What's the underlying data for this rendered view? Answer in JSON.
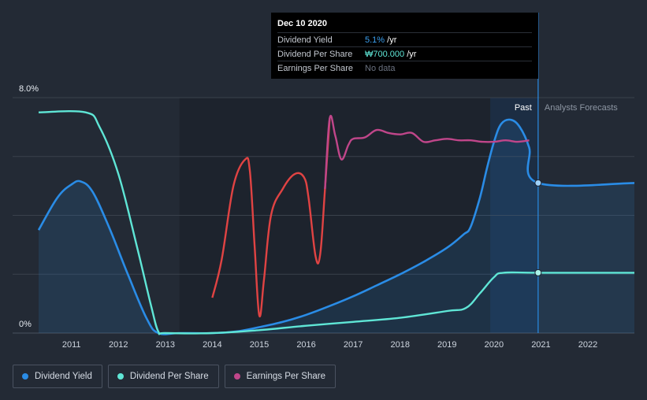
{
  "tooltip": {
    "date": "Dec 10 2020",
    "rows": [
      {
        "label": "Dividend Yield",
        "value": "5.1%",
        "suffix": " /yr"
      },
      {
        "label": "Dividend Per Share",
        "value": "₩700.000",
        "suffix": " /yr"
      },
      {
        "label": "Earnings Per Share",
        "value": "No data",
        "suffix": ""
      }
    ]
  },
  "regions": {
    "past_label": "Past",
    "forecast_label": "Analysts Forecasts"
  },
  "legend": [
    {
      "label": "Dividend Yield",
      "color": "#2a8ce6"
    },
    {
      "label": "Dividend Per Share",
      "color": "#5fe6d6"
    },
    {
      "label": "Earnings Per Share",
      "color": "#c0468a"
    }
  ],
  "colors": {
    "background": "#232a35",
    "dividend_yield": "#2a8ce6",
    "dividend_per_share": "#5fe6d6",
    "eps_positive": "#c0468a",
    "eps_negative": "#e04343",
    "past_region": "#1c3656"
  },
  "chart_data": {
    "type": "line",
    "x_ticks": [
      "2011",
      "2012",
      "2013",
      "2014",
      "2015",
      "2016",
      "2017",
      "2018",
      "2019",
      "2020",
      "2021",
      "2022"
    ],
    "y_ticks": [
      "8.0%",
      "0%"
    ],
    "ylim": [
      0,
      8
    ],
    "xlim": [
      2010.25,
      2022.99
    ],
    "past_region_start": 2019.92,
    "now_marker": 2020.94,
    "grid": true,
    "series": [
      {
        "name": "Dividend Yield",
        "unit": "%",
        "points": [
          [
            2010.3,
            3.5
          ],
          [
            2010.7,
            4.6
          ],
          [
            2011.0,
            5.05
          ],
          [
            2011.2,
            5.15
          ],
          [
            2011.45,
            4.8
          ],
          [
            2011.8,
            3.6
          ],
          [
            2012.2,
            2.0
          ],
          [
            2012.6,
            0.5
          ],
          [
            2012.85,
            0.0
          ],
          [
            2013.3,
            0.0
          ],
          [
            2014.0,
            0.0
          ],
          [
            2014.5,
            0.05
          ],
          [
            2015.0,
            0.2
          ],
          [
            2015.5,
            0.38
          ],
          [
            2016.0,
            0.62
          ],
          [
            2016.5,
            0.92
          ],
          [
            2017.0,
            1.25
          ],
          [
            2017.5,
            1.62
          ],
          [
            2018.0,
            2.0
          ],
          [
            2018.5,
            2.42
          ],
          [
            2019.0,
            2.9
          ],
          [
            2019.35,
            3.35
          ],
          [
            2019.5,
            3.6
          ],
          [
            2019.7,
            4.6
          ],
          [
            2019.85,
            5.6
          ],
          [
            2020.0,
            6.5
          ],
          [
            2020.15,
            7.1
          ],
          [
            2020.35,
            7.25
          ],
          [
            2020.55,
            7.0
          ],
          [
            2020.75,
            6.3
          ],
          [
            2020.94,
            5.1
          ],
          [
            2022.99,
            5.1
          ]
        ]
      },
      {
        "name": "Dividend Per Share",
        "unit": "relative",
        "points": [
          [
            2010.3,
            7.5
          ],
          [
            2011.3,
            7.5
          ],
          [
            2011.6,
            7.0
          ],
          [
            2012.0,
            5.4
          ],
          [
            2012.4,
            2.9
          ],
          [
            2012.7,
            0.9
          ],
          [
            2012.85,
            0.05
          ],
          [
            2013.0,
            0.0
          ],
          [
            2014.0,
            0.0
          ],
          [
            2015.0,
            0.1
          ],
          [
            2016.0,
            0.25
          ],
          [
            2017.0,
            0.38
          ],
          [
            2018.0,
            0.52
          ],
          [
            2019.0,
            0.75
          ],
          [
            2019.4,
            0.85
          ],
          [
            2019.7,
            1.35
          ],
          [
            2020.0,
            1.9
          ],
          [
            2020.2,
            2.05
          ],
          [
            2020.94,
            2.05
          ],
          [
            2022.99,
            2.05
          ]
        ]
      },
      {
        "name": "Earnings Per Share",
        "unit": "relative",
        "points": [
          [
            2014.0,
            1.2
          ],
          [
            2014.2,
            2.5
          ],
          [
            2014.45,
            5.0
          ],
          [
            2014.7,
            5.9
          ],
          [
            2014.8,
            5.5
          ],
          [
            2014.9,
            3.0
          ],
          [
            2015.0,
            0.6
          ],
          [
            2015.1,
            1.8
          ],
          [
            2015.25,
            4.0
          ],
          [
            2015.5,
            4.9
          ],
          [
            2015.75,
            5.4
          ],
          [
            2015.95,
            5.3
          ],
          [
            2016.05,
            4.6
          ],
          [
            2016.2,
            2.6
          ],
          [
            2016.3,
            2.7
          ],
          [
            2016.4,
            4.9
          ],
          [
            2016.5,
            7.3
          ],
          [
            2016.62,
            6.7
          ],
          [
            2016.75,
            5.9
          ],
          [
            2016.9,
            6.4
          ],
          [
            2017.0,
            6.6
          ],
          [
            2017.25,
            6.65
          ],
          [
            2017.5,
            6.9
          ],
          [
            2017.75,
            6.8
          ],
          [
            2018.0,
            6.75
          ],
          [
            2018.25,
            6.8
          ],
          [
            2018.5,
            6.5
          ],
          [
            2018.75,
            6.55
          ],
          [
            2019.0,
            6.6
          ],
          [
            2019.25,
            6.55
          ],
          [
            2019.5,
            6.55
          ],
          [
            2019.75,
            6.5
          ],
          [
            2020.0,
            6.5
          ],
          [
            2020.25,
            6.55
          ],
          [
            2020.5,
            6.5
          ],
          [
            2020.75,
            6.55
          ]
        ],
        "positive_from": 2016.45
      }
    ]
  }
}
